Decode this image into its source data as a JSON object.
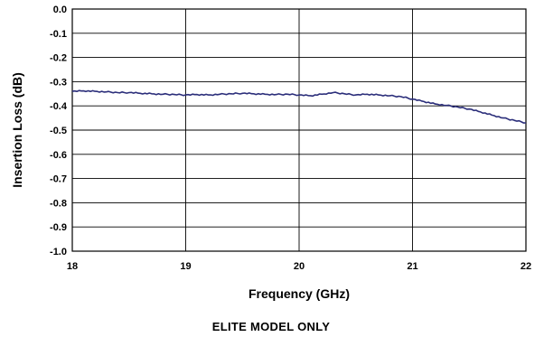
{
  "chart_data": {
    "type": "line",
    "xlabel": "Frequency (GHz)",
    "ylabel": "Insertion Loss (dB)",
    "xlim": [
      18,
      22
    ],
    "ylim": [
      -1.0,
      0.0
    ],
    "x_ticks": [
      "18",
      "19",
      "20",
      "21",
      "22"
    ],
    "y_ticks": [
      "0.0",
      "-0.1",
      "-0.2",
      "-0.3",
      "-0.4",
      "-0.5",
      "-0.6",
      "-0.7",
      "-0.8",
      "-0.9",
      "-1.0"
    ],
    "grid": true,
    "legend": "none",
    "line_color": "#2b2e7a",
    "series": [
      {
        "x": [
          18.0,
          18.1,
          18.2,
          18.3,
          18.4,
          18.5,
          18.6,
          18.7,
          18.8,
          18.9,
          19.0,
          19.1,
          19.2,
          19.3,
          19.4,
          19.5,
          19.6,
          19.7,
          19.8,
          19.9,
          20.0,
          20.1,
          20.2,
          20.3,
          20.4,
          20.5,
          20.6,
          20.7,
          20.8,
          20.9,
          21.0,
          21.1,
          21.2,
          21.3,
          21.4,
          21.5,
          21.6,
          21.7,
          21.8,
          21.9,
          22.0
        ],
        "y": [
          -0.34,
          -0.338,
          -0.34,
          -0.342,
          -0.345,
          -0.345,
          -0.348,
          -0.35,
          -0.352,
          -0.353,
          -0.355,
          -0.353,
          -0.355,
          -0.352,
          -0.35,
          -0.348,
          -0.35,
          -0.352,
          -0.353,
          -0.352,
          -0.355,
          -0.358,
          -0.352,
          -0.345,
          -0.35,
          -0.355,
          -0.352,
          -0.355,
          -0.358,
          -0.362,
          -0.372,
          -0.382,
          -0.392,
          -0.398,
          -0.405,
          -0.413,
          -0.425,
          -0.438,
          -0.45,
          -0.46,
          -0.47
        ]
      }
    ]
  },
  "footer": {
    "note": "ELITE MODEL ONLY"
  }
}
